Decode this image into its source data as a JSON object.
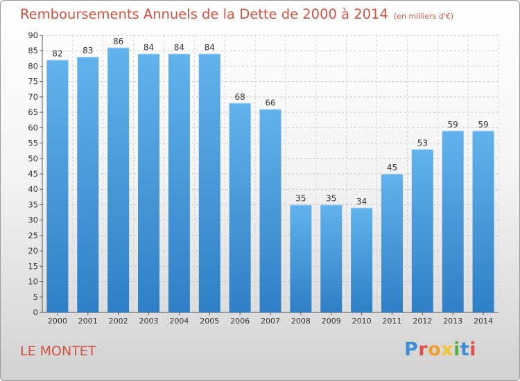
{
  "title": "Remboursements Annuels de la Dette de 2000 à 2014",
  "unit": "(en milliers d'€)",
  "commune": "LE MONTET",
  "logo": {
    "letters": [
      "P",
      "r",
      "o",
      "x",
      "i",
      "t",
      "i"
    ]
  },
  "colors": {
    "bar": "#3f92d6",
    "bar_light": "#5eaee9",
    "title": "#d1523f"
  },
  "chart_data": {
    "type": "bar",
    "categories": [
      "2000",
      "2001",
      "2002",
      "2003",
      "2004",
      "2005",
      "2006",
      "2007",
      "2008",
      "2009",
      "2010",
      "2011",
      "2012",
      "2013",
      "2014"
    ],
    "values": [
      82,
      83,
      86,
      84,
      84,
      84,
      68,
      66,
      35,
      35,
      34,
      45,
      53,
      59,
      59
    ],
    "ylim": [
      0,
      90
    ],
    "yticks": [
      0,
      5,
      10,
      15,
      20,
      25,
      30,
      35,
      40,
      45,
      50,
      55,
      60,
      65,
      70,
      75,
      80,
      85,
      90
    ],
    "grid": true
  }
}
